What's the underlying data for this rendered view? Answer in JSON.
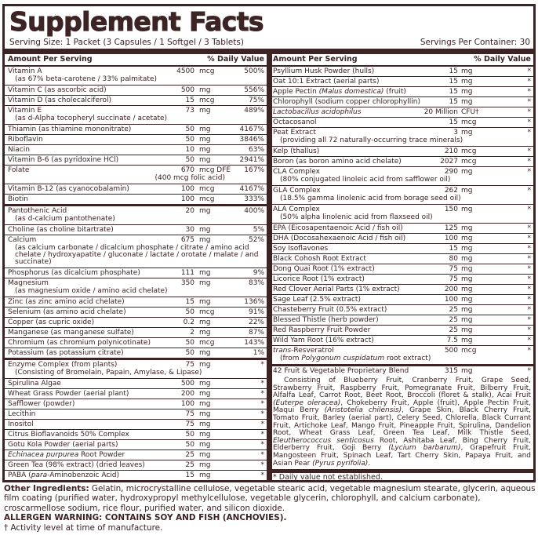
{
  "title": "Supplement Facts",
  "serving_size": "Serving Size: 1 Packet (3 Capsules / 1 Softgel / 3 Tablets)",
  "servings_per_container": "Servings Per Container: 30",
  "colors": {
    "border": "#3d2424",
    "text": "#3a2222"
  },
  "header": {
    "amount": "Amount Per Serving",
    "dv": "% Daily Value"
  },
  "left": [
    {
      "name": [
        {
          "t": "Vitamin A"
        }
      ],
      "sub": [
        {
          "t": "(as 67% beta-carotene / 33% palmitate)"
        }
      ],
      "amount": "4500",
      "unit": "mcg",
      "dv": "500%"
    },
    {
      "name": [
        {
          "t": "Vitamin C (as ascorbic acid)"
        }
      ],
      "amount": "500",
      "unit": "mg",
      "dv": "556%"
    },
    {
      "name": [
        {
          "t": "Vitamin D (as cholecalciferol)"
        }
      ],
      "amount": "15",
      "unit": "mcg",
      "dv": "75%"
    },
    {
      "name": [
        {
          "t": "Vitamin E"
        }
      ],
      "sub": [
        {
          "t": "(as d-Alpha tocopheryl succinate / acetate)"
        }
      ],
      "amount": "73",
      "unit": "mg",
      "dv": "489%"
    },
    {
      "name": [
        {
          "t": "Thiamin (as thiamine mononitrate)"
        }
      ],
      "amount": "50",
      "unit": "mg",
      "dv": "4167%"
    },
    {
      "name": [
        {
          "t": "Riboflavin"
        }
      ],
      "amount": "50",
      "unit": "mg",
      "dv": "3846%"
    },
    {
      "name": [
        {
          "t": "Niacin"
        }
      ],
      "amount": "10",
      "unit": "mg",
      "dv": "63%"
    },
    {
      "name": [
        {
          "t": "Vitamin B-6 (as pyridoxine HCl)"
        }
      ],
      "amount": "50",
      "unit": "mg",
      "dv": "2941%"
    },
    {
      "name": [
        {
          "t": "Folate"
        }
      ],
      "amount": "670",
      "unit": "mcg DFE",
      "dv": "167%",
      "sub_amount": "(400 mcg folic acid)"
    },
    {
      "name": [
        {
          "t": "Vitamin B-12 (as cyanocobalamin)"
        }
      ],
      "amount": "100",
      "unit": "mcg",
      "dv": "4167%"
    },
    {
      "name": [
        {
          "t": "Biotin"
        }
      ],
      "amount": "100",
      "unit": "mcg",
      "dv": "333%",
      "thick": true
    },
    {
      "name": [
        {
          "t": "Pantothenic Acid"
        }
      ],
      "sub": [
        {
          "t": "(as d-calcium pantothenate)"
        }
      ],
      "amount": "20",
      "unit": "mg",
      "dv": "400%"
    },
    {
      "name": [
        {
          "t": "Choline (as choline bitartrate)"
        }
      ],
      "amount": "30",
      "unit": "mg",
      "dv": "5%"
    },
    {
      "name": [
        {
          "t": "Calcium"
        }
      ],
      "sub": [
        {
          "t": "(as calcium carbonate / dicalcium phosphate / citrate / amino acid chelate / hydroxyapatite / gluconate / lactate / orotate / malate / and succinate)"
        }
      ],
      "amount": "675",
      "unit": "mg",
      "dv": "52%"
    },
    {
      "name": [
        {
          "t": "Phosphorus (as dicalcium phosphate)"
        }
      ],
      "amount": "111",
      "unit": "mg",
      "dv": "9%"
    },
    {
      "name": [
        {
          "t": "Magnesium"
        }
      ],
      "sub": [
        {
          "t": "(as magnesium oxide / amino acid chelate)"
        }
      ],
      "amount": "350",
      "unit": "mg",
      "dv": "83%"
    },
    {
      "name": [
        {
          "t": "Zinc (as zinc amino acid chelate)"
        }
      ],
      "amount": "15",
      "unit": "mg",
      "dv": "136%"
    },
    {
      "name": [
        {
          "t": "Selenium (as amino acid chelate)"
        }
      ],
      "amount": "50",
      "unit": "mcg",
      "dv": "91%"
    },
    {
      "name": [
        {
          "t": "Copper (as cupric oxide)"
        }
      ],
      "amount": "0.2",
      "unit": "mg",
      "dv": "22%"
    },
    {
      "name": [
        {
          "t": "Manganese (as manganese sulfate)"
        }
      ],
      "amount": "2",
      "unit": "mg",
      "dv": "87%"
    },
    {
      "name": [
        {
          "t": "Chromium (as chromium polynicotinate)"
        }
      ],
      "amount": "50",
      "unit": "mcg",
      "dv": "143%"
    },
    {
      "name": [
        {
          "t": "Potassium (as potassium citrate)"
        }
      ],
      "amount": "50",
      "unit": "mg",
      "dv": "1%",
      "thick": true
    },
    {
      "name": [
        {
          "t": "Enzyme Complex (from plants)"
        }
      ],
      "sub": [
        {
          "t": "(Consisting of Bromelain, Papain, Amylase, & Lipase)"
        }
      ],
      "amount": "75",
      "unit": "mg",
      "dv": "*"
    },
    {
      "name": [
        {
          "t": "Spirulina Algae"
        }
      ],
      "amount": "500",
      "unit": "mg",
      "dv": "*"
    },
    {
      "name": [
        {
          "t": "Wheat Grass Powder (aerial plant)"
        }
      ],
      "amount": "200",
      "unit": "mg",
      "dv": "*"
    },
    {
      "name": [
        {
          "t": "Safflower (powder)"
        }
      ],
      "amount": "100",
      "unit": "mg",
      "dv": "*"
    },
    {
      "name": [
        {
          "t": "Lecithin"
        }
      ],
      "amount": "75",
      "unit": "mg",
      "dv": "*"
    },
    {
      "name": [
        {
          "t": "Inositol"
        }
      ],
      "amount": "75",
      "unit": "mg",
      "dv": "*"
    },
    {
      "name": [
        {
          "t": "Citrus Bioflavanoids 50% Complex"
        }
      ],
      "amount": "50",
      "unit": "mg",
      "dv": "*"
    },
    {
      "name": [
        {
          "t": "Gotu Kola Powder (aerial parts)"
        }
      ],
      "amount": "50",
      "unit": "mg",
      "dv": "*"
    },
    {
      "name": [
        {
          "t": "Echinacea purpurea",
          "i": true
        },
        {
          "t": " Root Powder"
        }
      ],
      "amount": "25",
      "unit": "mg",
      "dv": "*"
    },
    {
      "name": [
        {
          "t": "Green Tea (98% extract) (dried leaves)"
        }
      ],
      "amount": "25",
      "unit": "mg",
      "dv": "*"
    },
    {
      "name": [
        {
          "t": "PABA ("
        },
        {
          "t": "para",
          "i": true
        },
        {
          "t": "-Aminobenzoic Acid)"
        }
      ],
      "amount": "15",
      "unit": "mg",
      "dv": "*"
    }
  ],
  "right": [
    {
      "name": [
        {
          "t": "Psyllium Husk Powder (hulls)"
        }
      ],
      "amount": "15",
      "unit": "mg",
      "dv": "*"
    },
    {
      "name": [
        {
          "t": "Oat 10:1 Extract (aerial parts)"
        }
      ],
      "amount": "15",
      "unit": "mg",
      "dv": "*"
    },
    {
      "name": [
        {
          "t": "Apple Pectin "
        },
        {
          "t": "(Malus domestica)",
          "i": true
        },
        {
          "t": " (fruit)"
        }
      ],
      "amount": "15",
      "unit": "mg",
      "dv": "*"
    },
    {
      "name": [
        {
          "t": "Chlorophyll (sodium copper chlorophyllin)"
        }
      ],
      "amount": "15",
      "unit": "mg",
      "dv": "*"
    },
    {
      "name": [
        {
          "t": "Lactobacillus acidophilus",
          "i": true
        }
      ],
      "amount": "20 Million",
      "unit": "CFU†",
      "dv": "*"
    },
    {
      "name": [
        {
          "t": "Octacosanol"
        }
      ],
      "amount": "15",
      "unit": "mcg",
      "dv": "*"
    },
    {
      "name": [
        {
          "t": "Peat Extract"
        }
      ],
      "sub": [
        {
          "t": "(providing all 72 naturally-occurring trace minerals)"
        }
      ],
      "amount": "3",
      "unit": "mg",
      "dv": "*"
    },
    {
      "name": [
        {
          "t": "Kelp (thallus)"
        }
      ],
      "amount": "210",
      "unit": "mcg",
      "dv": "*"
    },
    {
      "name": [
        {
          "t": "Boron (as boron amino acid chelate)"
        }
      ],
      "amount": "2027",
      "unit": "mcg",
      "dv": "*"
    },
    {
      "name": [
        {
          "t": "CLA Complex"
        }
      ],
      "sub": [
        {
          "t": "(80% conjugated linoleic acid from safflower oil)"
        }
      ],
      "amount": "290",
      "unit": "mg",
      "dv": "*"
    },
    {
      "name": [
        {
          "t": "GLA Complex"
        }
      ],
      "sub": [
        {
          "t": "(18.5% gamma linolenic acid from borage seed oil)"
        }
      ],
      "amount": "262",
      "unit": "mg",
      "dv": "*"
    },
    {
      "name": [
        {
          "t": "ALA Complex"
        }
      ],
      "sub": [
        {
          "t": "(50% alpha linolenic acid from flaxseed oil)"
        }
      ],
      "amount": "150",
      "unit": "mg",
      "dv": "*"
    },
    {
      "name": [
        {
          "t": "EPA (Eicosapentaenoic Acid / fish oil)"
        }
      ],
      "amount": "125",
      "unit": "mg",
      "dv": "*"
    },
    {
      "name": [
        {
          "t": "DHA (Docosahexaenoic Acid / fish oil)"
        }
      ],
      "amount": "100",
      "unit": "mg",
      "dv": "*"
    },
    {
      "name": [
        {
          "t": "Soy Isoflavones"
        }
      ],
      "amount": "15",
      "unit": "mg",
      "dv": "*"
    },
    {
      "name": [
        {
          "t": "Black Cohosh Root Extract"
        }
      ],
      "amount": "80",
      "unit": "mg",
      "dv": "*"
    },
    {
      "name": [
        {
          "t": "Dong Quai Root (1% extract)"
        }
      ],
      "amount": "75",
      "unit": "mg",
      "dv": "*"
    },
    {
      "name": [
        {
          "t": "Licorice Root (1% extract)"
        }
      ],
      "amount": "75",
      "unit": "mg",
      "dv": "*"
    },
    {
      "name": [
        {
          "t": "Red Clover Aerial Parts (1% extract)"
        }
      ],
      "amount": "200",
      "unit": "mg",
      "dv": "*"
    },
    {
      "name": [
        {
          "t": "Sage Leaf (2.5% extract)"
        }
      ],
      "amount": "100",
      "unit": "mg",
      "dv": "*"
    },
    {
      "name": [
        {
          "t": "Chasteberry Fruit (0.5% extract)"
        }
      ],
      "amount": "25",
      "unit": "mg",
      "dv": "*"
    },
    {
      "name": [
        {
          "t": "Blessed Thistle (herb powder)"
        }
      ],
      "amount": "25",
      "unit": "mg",
      "dv": "*"
    },
    {
      "name": [
        {
          "t": "Red Raspberry Fruit Powder"
        }
      ],
      "amount": "25",
      "unit": "mg",
      "dv": "*"
    },
    {
      "name": [
        {
          "t": "Wild Yam Root (16% extract)"
        }
      ],
      "amount": "7.5",
      "unit": "mg",
      "dv": "*"
    },
    {
      "name": [
        {
          "t": "trans",
          "i": true
        },
        {
          "t": "-Resveratrol"
        }
      ],
      "sub": [
        {
          "t": "(from "
        },
        {
          "t": "Polygonum cuspidatum",
          "i": true
        },
        {
          "t": " root extract)"
        }
      ],
      "amount": "500",
      "unit": "mcg",
      "dv": "*",
      "thick": true
    }
  ],
  "blend": {
    "name": "42 Fruit & Vegetable Proprietary Blend",
    "amount": "315",
    "unit": "mg",
    "dv": "*",
    "desc": [
      {
        "t": "Consisting of Blueberry Fruit, Cranberry Fruit, Grape Seed, Strawberry Fruit, Raspberry Fruit, Pomegranate Fruit, Bilberry Fruit, Alfalfa Leaf, Carrot Root, Beet Root, Broccoli (floret & stalk), Acai Fruit "
      },
      {
        "t": "(Euterpe oleracea)",
        "i": true
      },
      {
        "t": ", Chokeberry Fruit, Apple (fruit), Apple Pectin Fruit, Maqui Berry "
      },
      {
        "t": "(Aristotelia chilensis)",
        "i": true
      },
      {
        "t": ", Grape Skin, Black Cherry Fruit, Tomato Fruit, Barley (aerial part), Celery Seed, Chlorella, Black Currant Fruit, Artichoke Leaf, Mango Fruit, Pineapple Fruit, Spirulina, Dandelion Root, Wheat Grass Leaf, Green Tea Leaf, Milk Thistle Seed, "
      },
      {
        "t": "Eleutherococcus senticosus",
        "i": true
      },
      {
        "t": " Root, Ashitaba Leaf, Bing Cherry Fruit, Elderberry Fruit, Goji Berry "
      },
      {
        "t": "(Lycium barbarum)",
        "i": true
      },
      {
        "t": ", Grapefruit Fruit, Mangosteen Fruit, Spinach Leaf, Tart Cherry Skin, Papaya Fruit, and Asian Pear "
      },
      {
        "t": "(Pyrus pyrifolia)",
        "i": true
      },
      {
        "t": "."
      }
    ]
  },
  "dv_note": "* Daily value not established.",
  "footer": {
    "other_label": "Other Ingredients:",
    "other_text": " Gelatin, microcrystalline cellulose, vegetable stearic acid, vegetable magnesium stearate, glycerin, aqueous film coating (purified water, hydroxypropyl methylcellulose, vegetable glycerin, chlorophyll, and calcium carbonate), croscarmellose sodium, rice flour, purified water, and silicon dioxide.",
    "allergen": "ALLERGEN WARNING: CONTAINS SOY AND FISH (ANCHOVIES).",
    "dagger_note": "† Activity level at time of manufacture."
  }
}
